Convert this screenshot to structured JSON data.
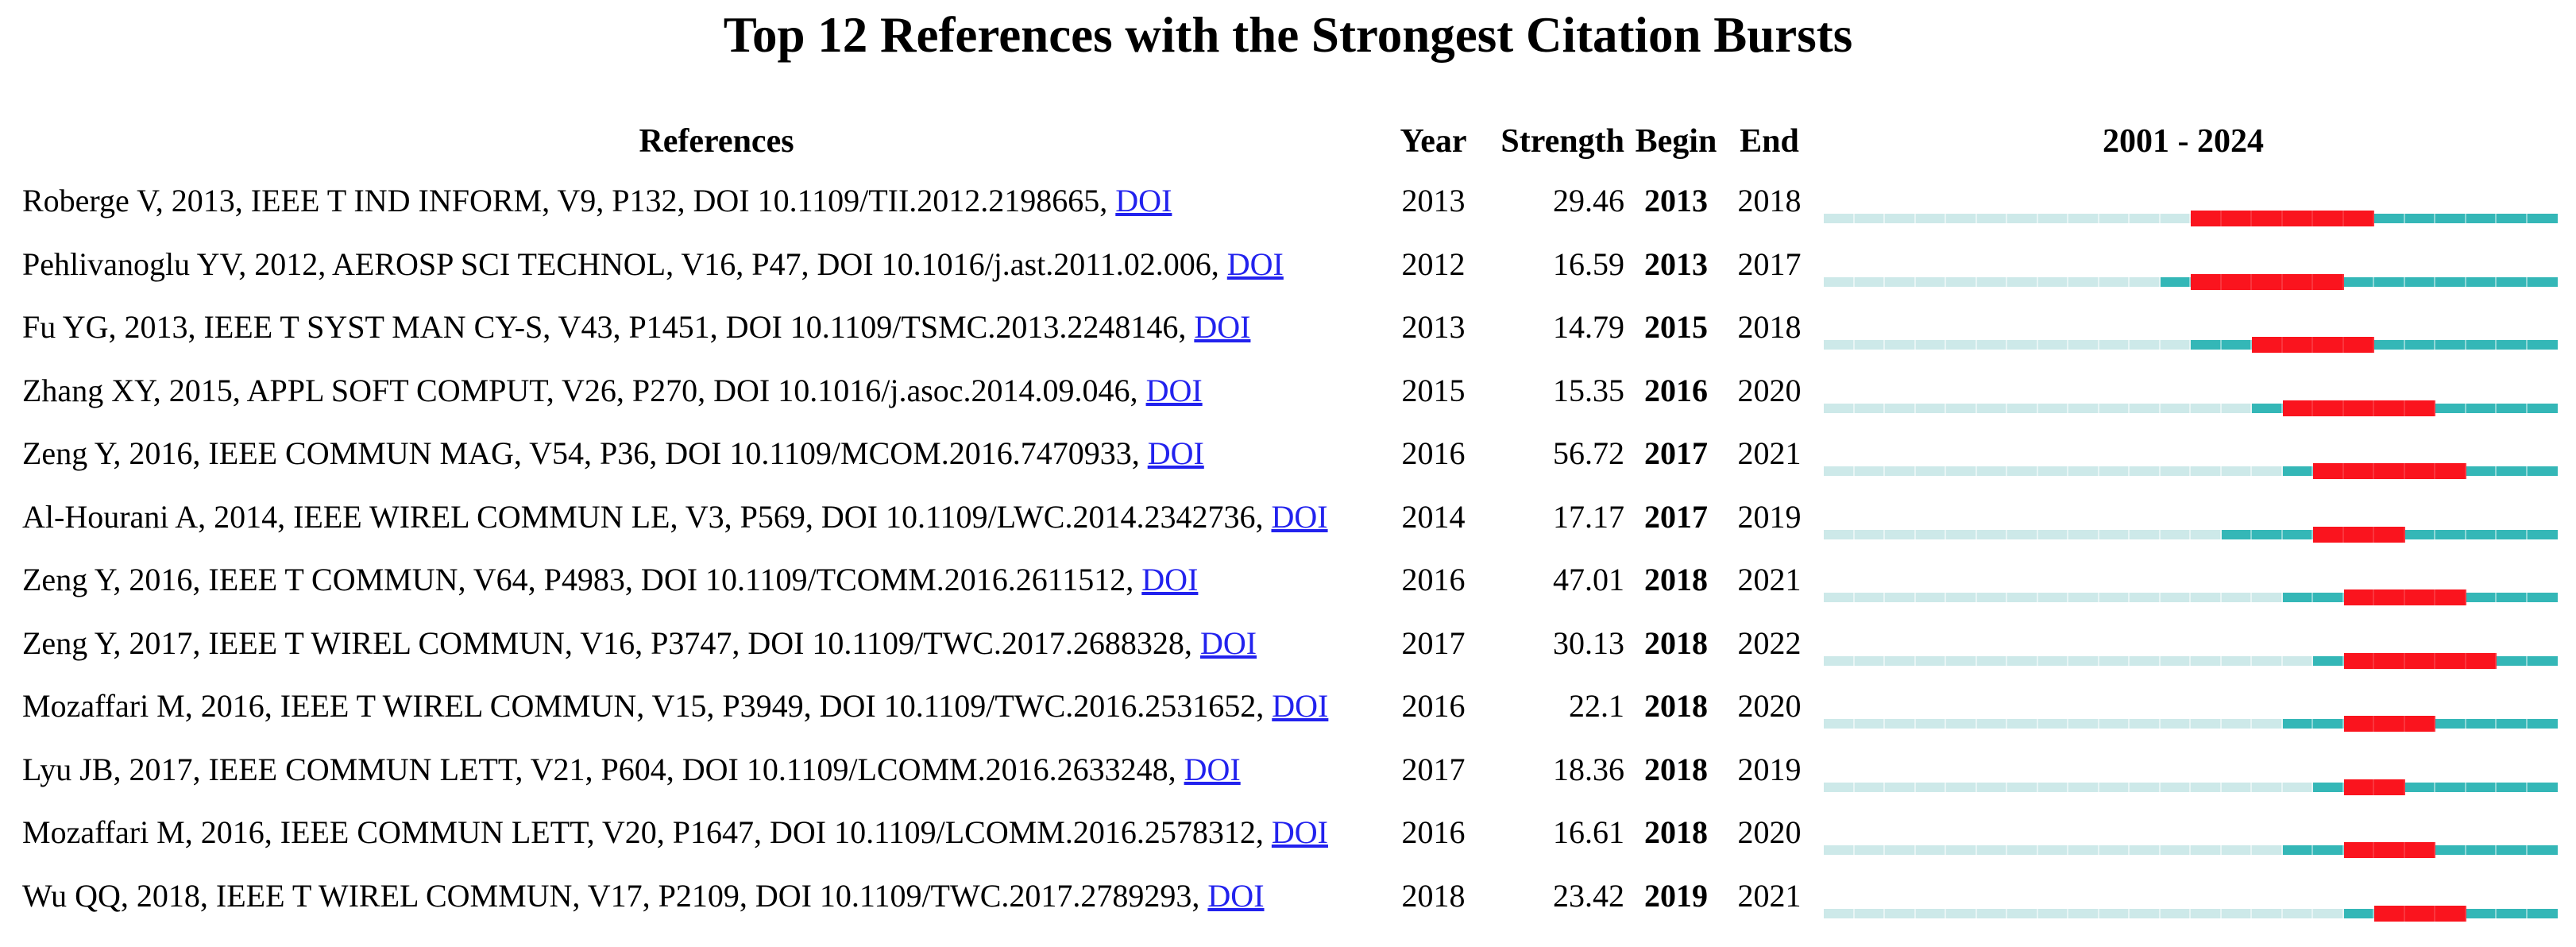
{
  "title": "Top 12 References with the Strongest Citation Bursts",
  "header": {
    "references": "References",
    "year": "Year",
    "strength": "Strength",
    "begin": "Begin",
    "end": "End",
    "timeline": "2001 - 2024"
  },
  "chart_data": {
    "type": "table",
    "title": "Top 12 References with the Strongest Citation Bursts",
    "columns": [
      "References",
      "Year",
      "Strength",
      "Begin",
      "End",
      "2001 - 2024"
    ],
    "timeline": {
      "start": 2001,
      "end": 2024,
      "label": "2001 - 2024"
    },
    "colors": {
      "pre_publication_segment": "#CDE9E9",
      "active_segment": "#34B7B7",
      "burst_segment": "#FA141E",
      "doi_link": "#2222EE"
    },
    "rows": [
      {
        "reference": "Roberge V, 2013, IEEE T IND INFORM, V9, P132, DOI 10.1109/TII.2012.2198665,",
        "link": "DOI",
        "year": 2013,
        "strength": "29.46",
        "begin": 2013,
        "end": 2018
      },
      {
        "reference": "Pehlivanoglu YV, 2012, AEROSP SCI TECHNOL, V16, P47, DOI 10.1016/j.ast.2011.02.006,",
        "link": "DOI",
        "year": 2012,
        "strength": "16.59",
        "begin": 2013,
        "end": 2017
      },
      {
        "reference": "Fu YG, 2013, IEEE T SYST MAN CY-S, V43, P1451, DOI 10.1109/TSMC.2013.2248146,",
        "link": "DOI",
        "year": 2013,
        "strength": "14.79",
        "begin": 2015,
        "end": 2018
      },
      {
        "reference": "Zhang XY, 2015, APPL SOFT COMPUT, V26, P270, DOI 10.1016/j.asoc.2014.09.046,",
        "link": "DOI",
        "year": 2015,
        "strength": "15.35",
        "begin": 2016,
        "end": 2020
      },
      {
        "reference": "Zeng Y, 2016, IEEE COMMUN MAG, V54, P36, DOI 10.1109/MCOM.2016.7470933,",
        "link": "DOI",
        "year": 2016,
        "strength": "56.72",
        "begin": 2017,
        "end": 2021
      },
      {
        "reference": "Al-Hourani A, 2014, IEEE WIREL COMMUN LE, V3, P569, DOI 10.1109/LWC.2014.2342736,",
        "link": "DOI",
        "year": 2014,
        "strength": "17.17",
        "begin": 2017,
        "end": 2019
      },
      {
        "reference": "Zeng Y, 2016, IEEE T COMMUN, V64, P4983, DOI 10.1109/TCOMM.2016.2611512,",
        "link": "DOI",
        "year": 2016,
        "strength": "47.01",
        "begin": 2018,
        "end": 2021
      },
      {
        "reference": "Zeng Y, 2017, IEEE T WIREL COMMUN, V16, P3747, DOI 10.1109/TWC.2017.2688328,",
        "link": "DOI",
        "year": 2017,
        "strength": "30.13",
        "begin": 2018,
        "end": 2022
      },
      {
        "reference": "Mozaffari M, 2016, IEEE T WIREL COMMUN, V15, P3949, DOI 10.1109/TWC.2016.2531652,",
        "link": "DOI",
        "year": 2016,
        "strength": "22.1",
        "begin": 2018,
        "end": 2020
      },
      {
        "reference": "Lyu JB, 2017, IEEE COMMUN LETT, V21, P604, DOI 10.1109/LCOMM.2016.2633248,",
        "link": "DOI",
        "year": 2017,
        "strength": "18.36",
        "begin": 2018,
        "end": 2019
      },
      {
        "reference": "Mozaffari M, 2016, IEEE COMMUN LETT, V20, P1647, DOI 10.1109/LCOMM.2016.2578312,",
        "link": "DOI",
        "year": 2016,
        "strength": "16.61",
        "begin": 2018,
        "end": 2020
      },
      {
        "reference": "Wu QQ, 2018, IEEE T WIREL COMMUN, V17, P2109, DOI 10.1109/TWC.2017.2789293,",
        "link": "DOI",
        "year": 2018,
        "strength": "23.42",
        "begin": 2019,
        "end": 2021
      }
    ]
  }
}
